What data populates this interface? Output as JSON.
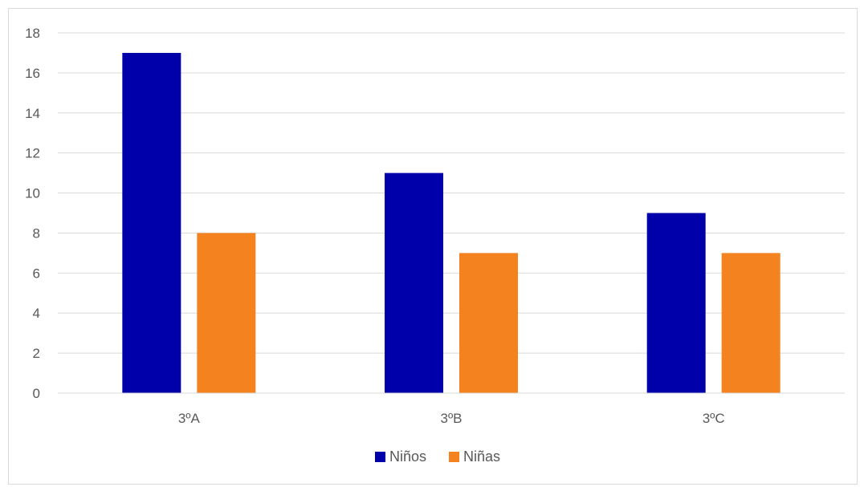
{
  "chart_data": {
    "type": "bar",
    "title": "",
    "xlabel": "",
    "ylabel": "",
    "categories": [
      "3ºA",
      "3ºB",
      "3ºC"
    ],
    "series": [
      {
        "name": "Niños",
        "values": [
          17,
          11,
          9
        ],
        "color": "#0000aa"
      },
      {
        "name": "Niñas",
        "values": [
          8,
          7,
          7
        ],
        "color": "#f4821f"
      }
    ],
    "ylim": [
      0,
      18
    ],
    "yticks": [
      0,
      2,
      4,
      6,
      8,
      10,
      12,
      14,
      16,
      18
    ],
    "grid": true,
    "legend": "bottom"
  }
}
